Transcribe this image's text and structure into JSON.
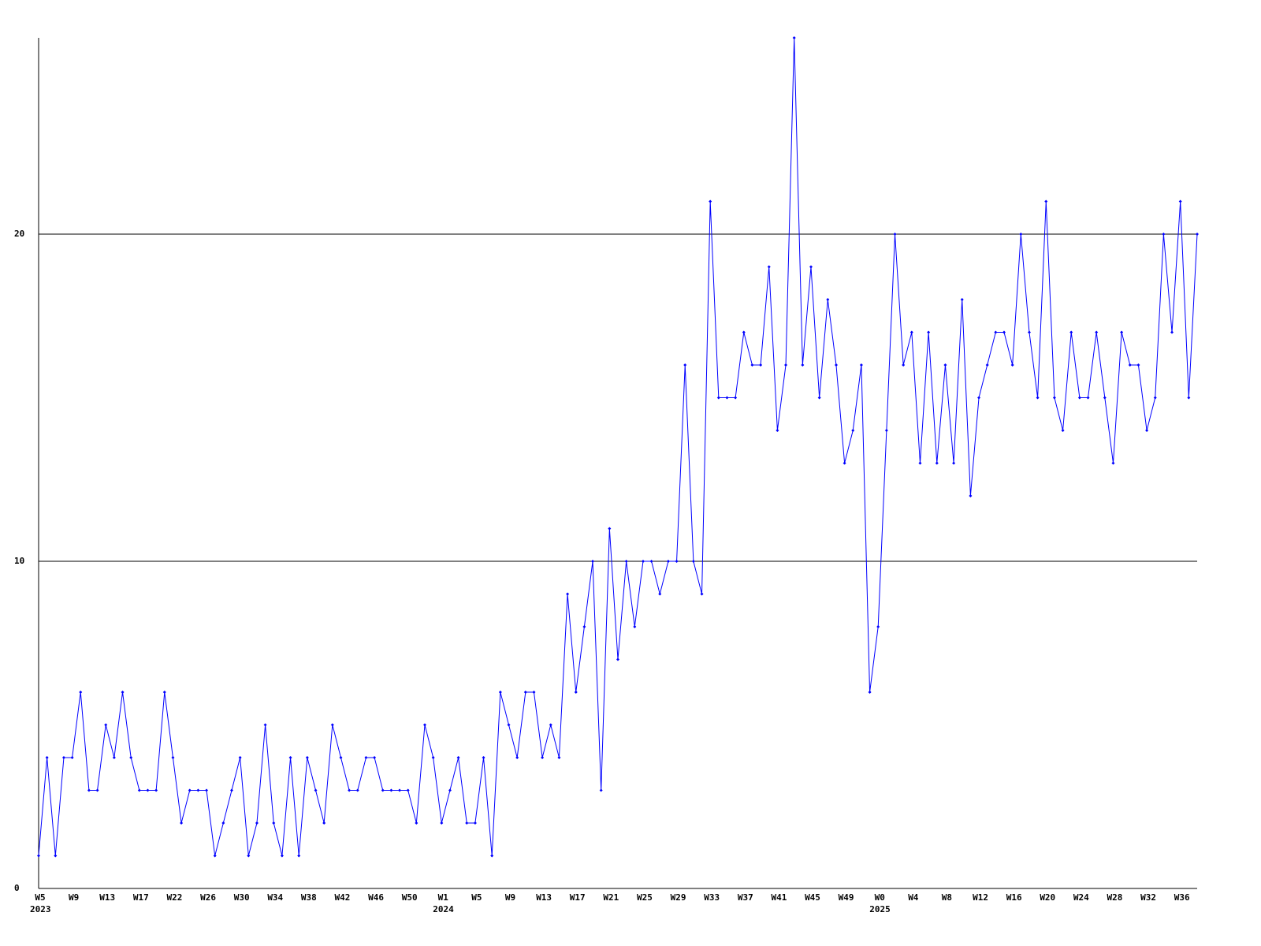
{
  "chart_data": {
    "type": "line",
    "categories": [
      "W5",
      null,
      null,
      null,
      "W9",
      null,
      null,
      null,
      "W13",
      null,
      null,
      null,
      "W17",
      null,
      null,
      null,
      "W22",
      null,
      null,
      null,
      "W26",
      null,
      null,
      null,
      "W30",
      null,
      null,
      null,
      "W34",
      null,
      null,
      null,
      "W38",
      null,
      null,
      null,
      "W42",
      null,
      null,
      null,
      "W46",
      null,
      null,
      null,
      "W50",
      null,
      null,
      null,
      "W1",
      null,
      null,
      null,
      "W5",
      null,
      null,
      null,
      "W9",
      null,
      null,
      null,
      "W13",
      null,
      null,
      null,
      "W17",
      null,
      null,
      null,
      "W21",
      null,
      null,
      null,
      "W25",
      null,
      null,
      null,
      "W29",
      null,
      null,
      null,
      "W33",
      null,
      null,
      null,
      "W37",
      null,
      null,
      null,
      "W41",
      null,
      null,
      null,
      "W45",
      null,
      null,
      null,
      "W49",
      null,
      null,
      null,
      "W0",
      null,
      null,
      null,
      "W4",
      null,
      null,
      null,
      "W8",
      null,
      null,
      null,
      "W12",
      null,
      null,
      null,
      "W16",
      null,
      null,
      null,
      "W20",
      null,
      null,
      null,
      "W24",
      null,
      null,
      null,
      "W28",
      null,
      null,
      null,
      "W32",
      null,
      null,
      null,
      "W36",
      null,
      null
    ],
    "year_labels": [
      "2023",
      null,
      null,
      null,
      null,
      null,
      null,
      null,
      null,
      null,
      null,
      null,
      null,
      null,
      null,
      null,
      null,
      null,
      null,
      null,
      null,
      null,
      null,
      null,
      null,
      null,
      null,
      null,
      null,
      null,
      null,
      null,
      null,
      null,
      null,
      null,
      null,
      null,
      null,
      null,
      null,
      null,
      null,
      null,
      null,
      null,
      null,
      null,
      "2024",
      null,
      null,
      null,
      null,
      null,
      null,
      null,
      null,
      null,
      null,
      null,
      null,
      null,
      null,
      null,
      null,
      null,
      null,
      null,
      null,
      null,
      null,
      null,
      null,
      null,
      null,
      null,
      null,
      null,
      null,
      null,
      null,
      null,
      null,
      null,
      null,
      null,
      null,
      null,
      null,
      null,
      null,
      null,
      null,
      null,
      null,
      null,
      null,
      null,
      null,
      null,
      "2025",
      null,
      null,
      null,
      null,
      null,
      null,
      null,
      null,
      null,
      null,
      null,
      null,
      null,
      null,
      null,
      null,
      null,
      null,
      null,
      null,
      null,
      null,
      null,
      null,
      null,
      null,
      null,
      null,
      null,
      null,
      null,
      null,
      null,
      null,
      null,
      null,
      null,
      null
    ],
    "series": [
      {
        "color": "#0000ff",
        "values": [
          1,
          4,
          1,
          4,
          4,
          6,
          3,
          3,
          5,
          4,
          6,
          4,
          3,
          3,
          3,
          6,
          4,
          2,
          3,
          3,
          3,
          1,
          2,
          3,
          4,
          1,
          2,
          5,
          2,
          1,
          4,
          1,
          4,
          3,
          2,
          5,
          4,
          3,
          3,
          4,
          4,
          3,
          3,
          3,
          3,
          2,
          5,
          4,
          2,
          3,
          4,
          2,
          2,
          4,
          1,
          6,
          5,
          4,
          6,
          6,
          4,
          5,
          4,
          9,
          6,
          8,
          10,
          3,
          11,
          7,
          10,
          8,
          10,
          10,
          9,
          10,
          10,
          16,
          10,
          9,
          21,
          15,
          15,
          15,
          17,
          16,
          16,
          19,
          14,
          16,
          26,
          16,
          19,
          15,
          18,
          16,
          13,
          14,
          16,
          6,
          8,
          14,
          20,
          16,
          17,
          13,
          17,
          13,
          16,
          13,
          18,
          12,
          15,
          16,
          17,
          17,
          16,
          20,
          17,
          15,
          21,
          15,
          14,
          17,
          15,
          15,
          17,
          15,
          13,
          17,
          16,
          16,
          14,
          15,
          20,
          17,
          21,
          15,
          20
        ]
      }
    ],
    "ylim": [
      0,
      26
    ],
    "yticks": [
      0,
      10,
      20
    ],
    "grid": true
  }
}
